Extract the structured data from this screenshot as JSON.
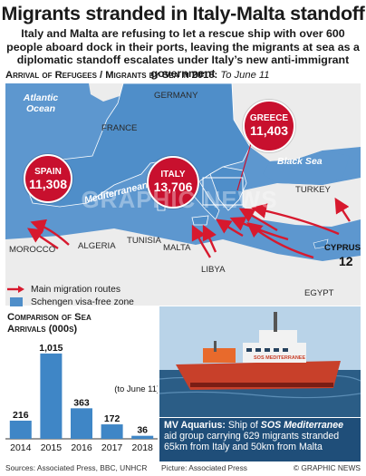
{
  "title": "Migrants stranded in Italy-Malta standoff",
  "subtitle": "Italy and Malta are refusing to let a rescue ship with over 600 people aboard dock in their ports, leaving the migrants at sea as a diplomatic standoff escalates under Italy’s new anti-immigrant government",
  "map_heading": {
    "label": "Arrival of Refugees / Migrants by Sea in 2018:",
    "date": "To June 11"
  },
  "map": {
    "seas": {
      "atlantic": "Atlantic Ocean",
      "black_sea": "Black Sea",
      "mediterranean": "Mediterranean Sea"
    },
    "countries": {
      "germany": "GERMANY",
      "france": "FRANCE",
      "turkey": "TURKEY",
      "morocco": "MOROCCO",
      "algeria": "ALGERIA",
      "tunisia": "TUNISIA",
      "malta": "MALTA",
      "libya": "LIBYA",
      "egypt": "EGYPT"
    },
    "arrivals": {
      "spain": {
        "name": "SPAIN",
        "value": "11,308"
      },
      "italy": {
        "name": "ITALY",
        "value": "13,706"
      },
      "greece": {
        "name": "GREECE",
        "value": "11,403"
      },
      "cyprus": {
        "name": "CYPRUS",
        "value": "12"
      }
    },
    "colors": {
      "sea": "#5d97cf",
      "land": "#ececec",
      "schengen": "#4f8ec9",
      "bubble": "#c8102e",
      "arrow": "#d7192e"
    }
  },
  "legend": {
    "routes": "Main migration routes",
    "schengen": "Schengen visa-free zone"
  },
  "watermark": "GRAPHIC NEWS",
  "chart_data": {
    "type": "bar",
    "title": "Comparison of Sea Arrivals (000s)",
    "categories": [
      "2014",
      "2015",
      "2016",
      "2017",
      "2018"
    ],
    "values": [
      216,
      1015,
      363,
      172,
      36
    ],
    "value_labels": [
      "216",
      "1,015",
      "363",
      "172",
      "36"
    ],
    "annotation": "(to June 11)",
    "bar_color": "#3f86c6",
    "ylim": [
      0,
      1100
    ]
  },
  "photo": {
    "ship_name": "SOS MEDITERRANEE"
  },
  "caption": {
    "name": "MV Aquarius:",
    "text1": "Ship of",
    "org": "SOS Mediterranee",
    "text2": "aid group carrying 629 migrants stranded 65km from Italy and 50km from Malta"
  },
  "footer": {
    "sources": "Sources: Associated Press, BBC, UNHCR",
    "picture": "Picture: Associated Press",
    "copyright": "© GRAPHIC NEWS"
  }
}
